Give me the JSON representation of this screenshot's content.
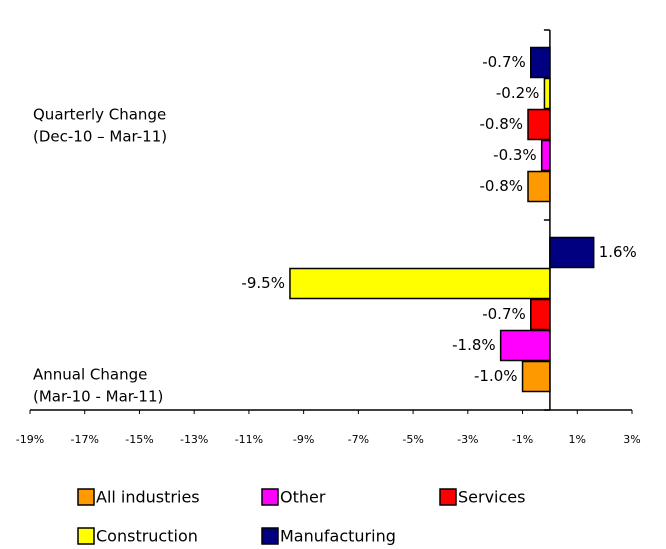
{
  "chart_data": {
    "type": "bar",
    "orientation": "horizontal",
    "categories": [
      "Quarterly Change",
      "Annual Change"
    ],
    "category_periods": [
      "(Dec-10 – Mar-11)",
      "(Mar-10 - Mar-11)"
    ],
    "series": [
      {
        "name": "All industries",
        "color": "#FF9900",
        "values": [
          -0.8,
          -1.0
        ],
        "value_labels": [
          "-0.8%",
          "-1.0%"
        ]
      },
      {
        "name": "Other",
        "color": "#FF00FF",
        "values": [
          -0.3,
          -1.8
        ],
        "value_labels": [
          "-0.3%",
          "-1.8%"
        ]
      },
      {
        "name": "Services",
        "color": "#FF0000",
        "values": [
          -0.8,
          -0.7
        ],
        "value_labels": [
          "-0.8%",
          "-0.7%"
        ]
      },
      {
        "name": "Construction",
        "color": "#FFFF00",
        "values": [
          -0.2,
          -9.5
        ],
        "value_labels": [
          "-0.2%",
          "-9.5%"
        ]
      },
      {
        "name": "Manufacturing",
        "color": "#000080",
        "values": [
          -0.7,
          1.6
        ],
        "value_labels": [
          "-0.7%",
          "1.6%"
        ]
      }
    ],
    "xlim": [
      -19,
      3
    ],
    "xticks": [
      {
        "value": -19,
        "label": "-19%"
      },
      {
        "value": -17,
        "label": "-17%"
      },
      {
        "value": -15,
        "label": "-15%"
      },
      {
        "value": -13,
        "label": "-13%"
      },
      {
        "value": -11,
        "label": "-11%"
      },
      {
        "value": -9,
        "label": "-9%"
      },
      {
        "value": -7,
        "label": "-7%"
      },
      {
        "value": -5,
        "label": "-5%"
      },
      {
        "value": -3,
        "label": "-3%"
      },
      {
        "value": -1,
        "label": "-1%"
      },
      {
        "value": 1,
        "label": "1%"
      },
      {
        "value": 3,
        "label": "3%"
      }
    ]
  }
}
